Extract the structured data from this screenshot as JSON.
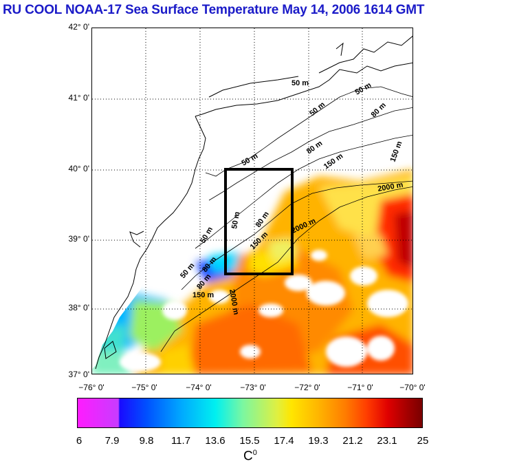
{
  "title": "RU COOL  NOAA-17 Sea Surface Temperature May 14, 2006 1614 GMT",
  "latitudes": [
    "42° 0'",
    "41° 0'",
    "40° 0'",
    "39° 0'",
    "38° 0'",
    "37° 0'"
  ],
  "longitudes": [
    "−76° 0'",
    "−75° 0'",
    "−74° 0'",
    "−73° 0'",
    "−72° 0'",
    "−71° 0'",
    "−70° 0'"
  ],
  "isobaths": {
    "m50a": "50 m",
    "m50b": "50 m",
    "m50c": "50 m",
    "m50d": "50 m",
    "m50e": "50 m",
    "m50f": "50 m",
    "m50g": "50 m",
    "m80a": "80 m",
    "m80b": "80 m",
    "m80c": "80 m",
    "m80d": "80 m",
    "m80e": "80 m",
    "m150a": "150 m",
    "m150b": "150 m",
    "m150c": "150 m",
    "m150d": "150 m",
    "m2000a": "2000 m",
    "m2000b": "2000 m",
    "m2000c": "2000 m"
  },
  "colorbar": {
    "ticks": [
      "6",
      "7.9",
      "9.8",
      "11.7",
      "13.6",
      "15.5",
      "17.4",
      "19.3",
      "21.2",
      "23.1",
      "25"
    ],
    "unit": "C",
    "unit_sup": "0"
  }
}
